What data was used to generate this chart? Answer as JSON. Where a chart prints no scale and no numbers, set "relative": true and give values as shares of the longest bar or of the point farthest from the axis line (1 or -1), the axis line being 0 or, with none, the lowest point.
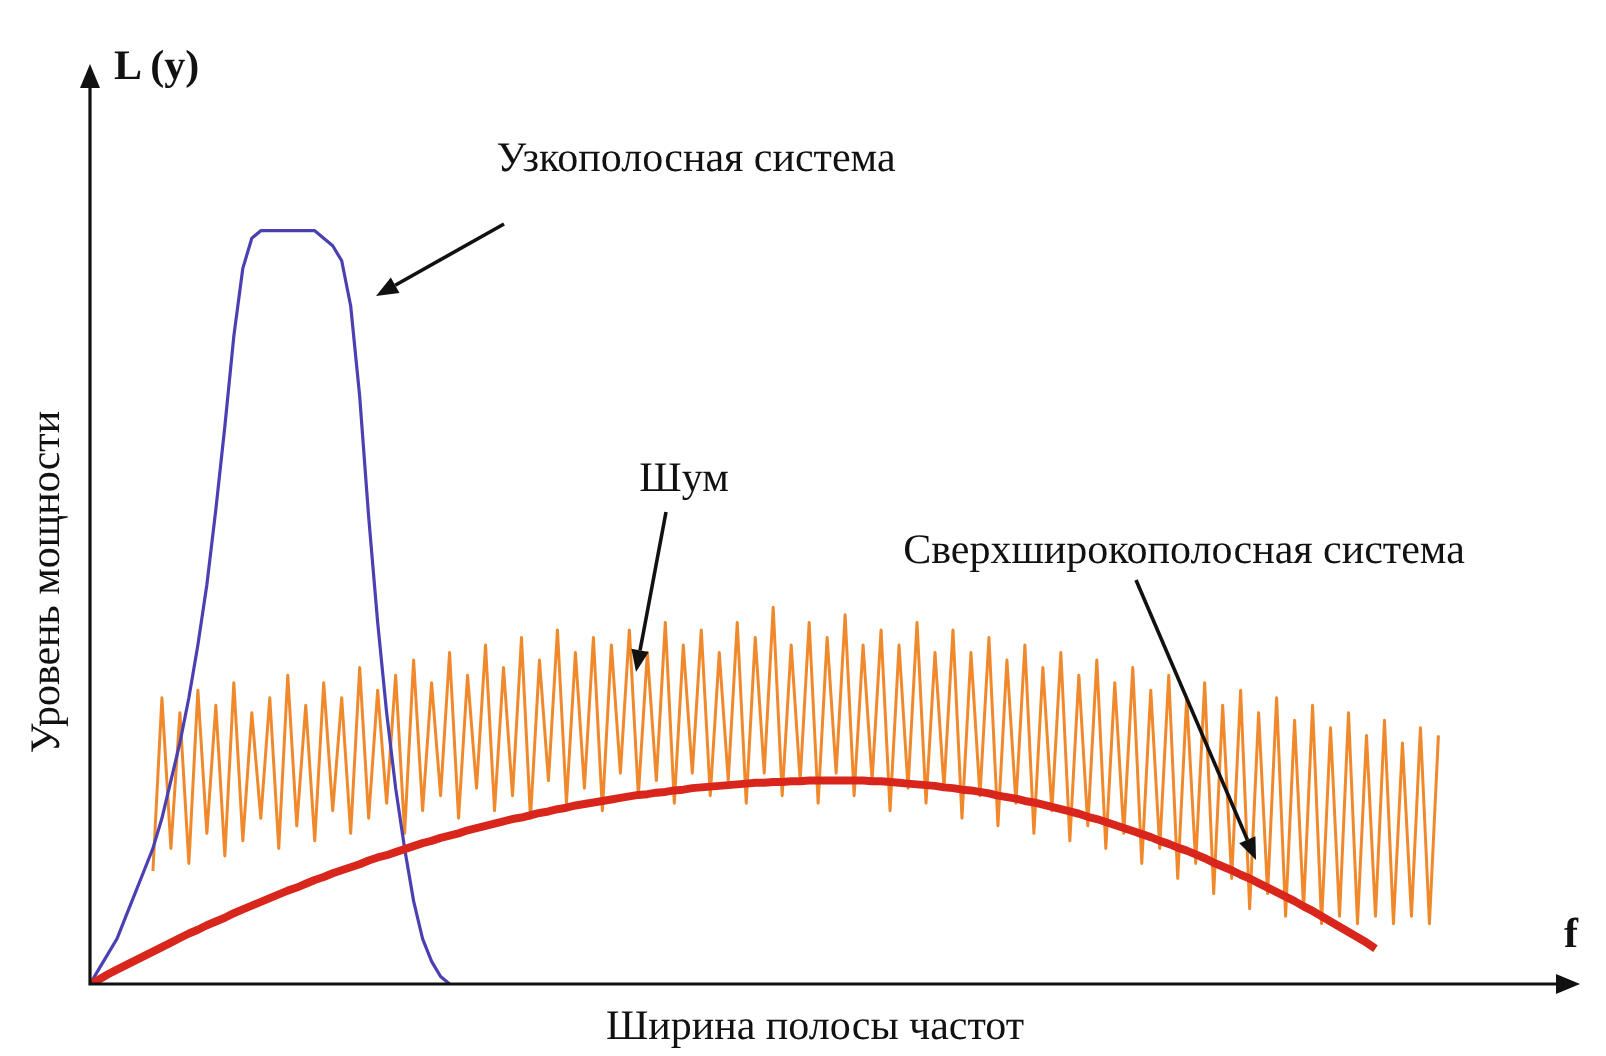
{
  "chart_data": {
    "type": "line",
    "relative": true,
    "xlabel": "Ширина полосы частот",
    "ylabel": "Уровень мощности",
    "annotations": [
      "L (y)",
      "f"
    ],
    "categories": [
      null,
      null,
      null,
      null,
      null,
      null,
      null,
      null,
      null,
      null,
      null,
      null,
      null,
      null,
      null,
      null,
      null,
      null,
      null,
      null,
      null,
      null,
      null,
      null,
      null,
      null,
      null,
      null,
      null,
      null,
      null,
      null,
      null,
      null,
      null,
      null,
      null,
      null,
      null,
      null,
      null,
      null,
      null,
      null,
      null,
      null,
      null,
      null,
      null,
      null,
      null,
      null,
      null,
      null,
      null,
      null,
      null,
      null,
      null,
      null,
      null,
      null,
      null,
      null,
      null,
      null,
      null,
      null,
      null,
      null,
      null,
      null,
      null,
      null,
      null,
      null,
      null,
      null,
      null,
      null,
      null,
      null,
      null,
      null,
      null,
      null,
      null,
      null,
      null,
      null,
      null,
      null,
      null,
      null,
      null,
      null,
      null,
      null,
      null,
      null,
      null,
      null,
      null,
      null,
      null,
      null,
      null,
      null,
      null,
      null,
      null,
      null,
      null,
      null,
      null,
      null,
      null,
      null,
      null,
      null,
      null,
      null,
      null,
      null,
      null,
      null,
      null,
      null,
      null,
      null,
      null,
      null,
      null,
      null,
      null,
      null,
      null,
      null,
      null,
      null,
      null,
      null,
      null,
      null,
      null,
      null,
      null,
      null,
      null,
      null,
      null
    ],
    "series": [
      {
        "name": "Шум",
        "color": "#f0892c",
        "values": [
          null,
          null,
          null,
          null,
          null,
          null,
          null,
          0.15,
          0.38,
          0.18,
          0.36,
          0.16,
          0.39,
          0.2,
          0.37,
          0.17,
          0.4,
          0.19,
          0.36,
          0.22,
          0.38,
          0.18,
          0.41,
          0.21,
          0.37,
          0.19,
          0.4,
          0.23,
          0.38,
          0.2,
          0.42,
          0.22,
          0.39,
          0.24,
          0.41,
          0.2,
          0.43,
          0.23,
          0.4,
          0.25,
          0.44,
          0.22,
          0.41,
          0.26,
          0.45,
          0.23,
          0.42,
          0.25,
          0.46,
          0.22,
          0.43,
          0.27,
          0.47,
          0.24,
          0.44,
          0.26,
          0.46,
          0.23,
          0.45,
          0.28,
          0.47,
          0.25,
          0.44,
          0.27,
          0.48,
          0.24,
          0.45,
          0.28,
          0.47,
          0.25,
          0.44,
          0.27,
          0.48,
          0.24,
          0.46,
          0.28,
          0.5,
          0.25,
          0.45,
          0.27,
          0.48,
          0.24,
          0.46,
          0.28,
          0.49,
          0.25,
          0.45,
          0.27,
          0.47,
          0.23,
          0.45,
          0.26,
          0.48,
          0.24,
          0.44,
          0.26,
          0.47,
          0.22,
          0.44,
          0.25,
          0.46,
          0.21,
          0.43,
          0.24,
          0.45,
          0.2,
          0.42,
          0.23,
          0.44,
          0.19,
          0.41,
          0.21,
          0.43,
          0.18,
          0.4,
          0.2,
          0.42,
          0.16,
          0.39,
          0.18,
          0.41,
          0.14,
          0.38,
          0.16,
          0.4,
          0.12,
          0.37,
          0.14,
          0.39,
          0.1,
          0.36,
          0.12,
          0.38,
          0.09,
          0.35,
          0.1,
          0.37,
          0.08,
          0.34,
          0.09,
          0.36,
          0.08,
          0.33,
          0.09,
          0.35,
          0.08,
          0.32,
          0.09,
          0.34,
          0.08,
          0.33
        ]
      },
      {
        "name": "Узкополосная система",
        "color": "#4b40b2",
        "values": [
          0,
          0.02,
          0.04,
          0.06,
          0.09,
          0.12,
          0.15,
          0.18,
          0.22,
          0.27,
          0.32,
          0.38,
          0.45,
          0.53,
          0.63,
          0.74,
          0.86,
          0.95,
          0.99,
          1,
          1,
          1,
          1,
          1,
          1,
          1,
          0.99,
          0.98,
          0.96,
          0.9,
          0.78,
          0.62,
          0.48,
          0.36,
          0.26,
          0.18,
          0.11,
          0.06,
          0.03,
          0.01,
          0,
          null,
          null,
          null,
          null,
          null,
          null,
          null,
          null,
          null,
          null,
          null,
          null,
          null,
          null,
          null,
          null,
          null,
          null,
          null,
          null,
          null,
          null,
          null,
          null,
          null,
          null,
          null,
          null,
          null,
          null,
          null,
          null,
          null,
          null,
          null,
          null,
          null,
          null,
          null,
          null,
          null,
          null,
          null,
          null,
          null,
          null,
          null,
          null,
          null,
          null,
          null,
          null,
          null,
          null,
          null,
          null,
          null,
          null,
          null,
          null,
          null,
          null,
          null,
          null,
          null,
          null,
          null,
          null,
          null,
          null,
          null,
          null,
          null,
          null,
          null,
          null,
          null,
          null,
          null,
          null,
          null,
          null,
          null,
          null,
          null,
          null,
          null,
          null,
          null,
          null,
          null,
          null,
          null,
          null,
          null,
          null,
          null,
          null,
          null,
          null,
          null,
          null,
          null,
          null,
          null,
          null,
          null,
          null,
          null,
          null
        ]
      },
      {
        "name": "Сверхширокополосная система",
        "color": "#d9261c",
        "values": [
          0,
          0.006,
          0.013,
          0.019,
          0.025,
          0.031,
          0.037,
          0.043,
          0.049,
          0.055,
          0.061,
          0.067,
          0.072,
          0.078,
          0.083,
          0.088,
          0.094,
          0.099,
          0.104,
          0.109,
          0.114,
          0.119,
          0.124,
          0.128,
          0.133,
          0.138,
          0.142,
          0.147,
          0.151,
          0.155,
          0.159,
          0.164,
          0.168,
          0.171,
          0.175,
          0.179,
          0.183,
          0.187,
          0.19,
          0.194,
          0.197,
          0.2,
          0.204,
          0.207,
          0.21,
          0.213,
          0.216,
          0.219,
          0.221,
          0.224,
          0.227,
          0.229,
          0.232,
          0.234,
          0.237,
          0.239,
          0.241,
          0.243,
          0.245,
          0.247,
          0.249,
          0.251,
          0.252,
          0.254,
          0.255,
          0.257,
          0.258,
          0.26,
          0.261,
          0.262,
          0.263,
          0.264,
          0.265,
          0.266,
          0.267,
          0.267,
          0.268,
          0.268,
          0.269,
          0.269,
          0.27,
          0.27,
          0.27,
          0.27,
          0.27,
          0.27,
          0.27,
          0.269,
          0.269,
          0.268,
          0.267,
          0.266,
          0.265,
          0.264,
          0.263,
          0.261,
          0.26,
          0.258,
          0.257,
          0.255,
          0.253,
          0.25,
          0.248,
          0.246,
          0.243,
          0.241,
          0.238,
          0.235,
          0.232,
          0.229,
          0.226,
          0.222,
          0.219,
          0.215,
          0.211,
          0.207,
          0.203,
          0.199,
          0.195,
          0.19,
          0.186,
          0.181,
          0.177,
          0.172,
          0.167,
          0.161,
          0.156,
          0.151,
          0.145,
          0.14,
          0.134,
          0.128,
          0.122,
          0.116,
          0.11,
          0.103,
          0.097,
          0.09,
          0.083,
          0.076,
          0.069,
          0.062,
          0.055,
          0.047,
          null,
          null,
          null,
          null,
          null,
          null,
          null
        ]
      }
    ]
  }
}
